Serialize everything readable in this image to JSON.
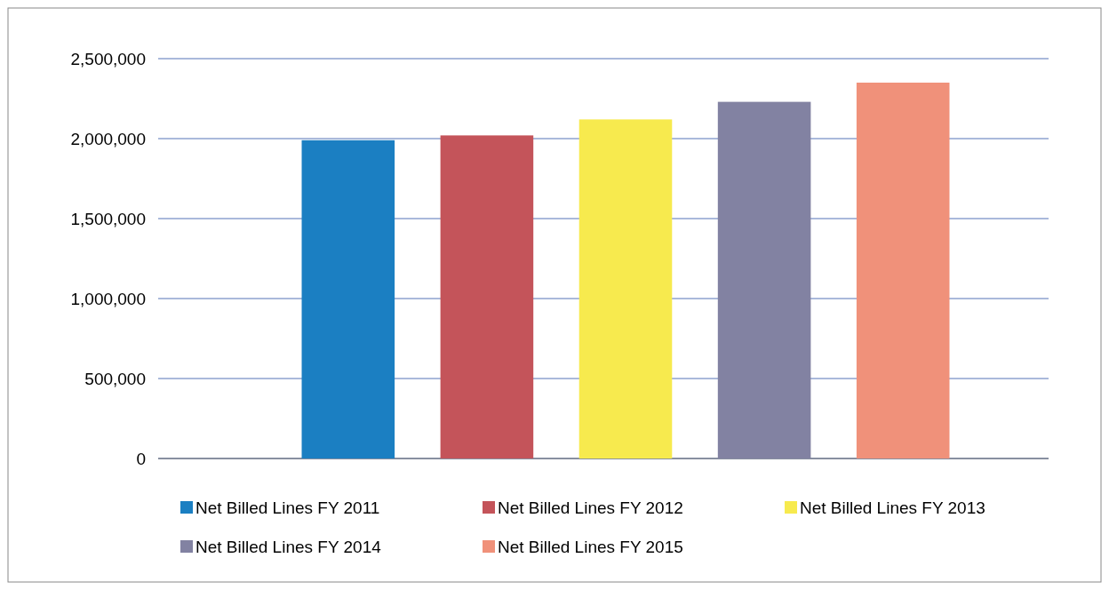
{
  "chart_data": {
    "type": "bar",
    "categories": [
      null,
      null,
      null,
      null,
      null
    ],
    "series": [
      {
        "name": "Net Billed Lines FY 2011",
        "color": "#1b7fc2",
        "values": [
          1990000,
          null,
          null,
          null,
          null
        ]
      },
      {
        "name": "Net Billed Lines FY 2012",
        "color": "#c4545a",
        "values": [
          null,
          2020000,
          null,
          null,
          null
        ]
      },
      {
        "name": "Net Billed Lines FY 2013",
        "color": "#f7ea4e",
        "values": [
          null,
          null,
          2120000,
          null,
          null
        ]
      },
      {
        "name": "Net Billed Lines FY 2014",
        "color": "#8282a2",
        "values": [
          null,
          null,
          null,
          2230000,
          null
        ]
      },
      {
        "name": "Net Billed Lines FY 2015",
        "color": "#f0917a",
        "values": [
          null,
          null,
          null,
          null,
          2350000
        ]
      }
    ],
    "ylim": [
      0,
      2500000
    ],
    "yticks": [
      {
        "value": 0,
        "label": "0"
      },
      {
        "value": 500000,
        "label": "500,000"
      },
      {
        "value": 1000000,
        "label": "1,000,000"
      },
      {
        "value": 1500000,
        "label": "1,500,000"
      },
      {
        "value": 2000000,
        "label": "2,000,000"
      },
      {
        "value": 2500000,
        "label": "2,500,000"
      }
    ],
    "grid": "y",
    "legend": "bottom",
    "stacked": true
  }
}
